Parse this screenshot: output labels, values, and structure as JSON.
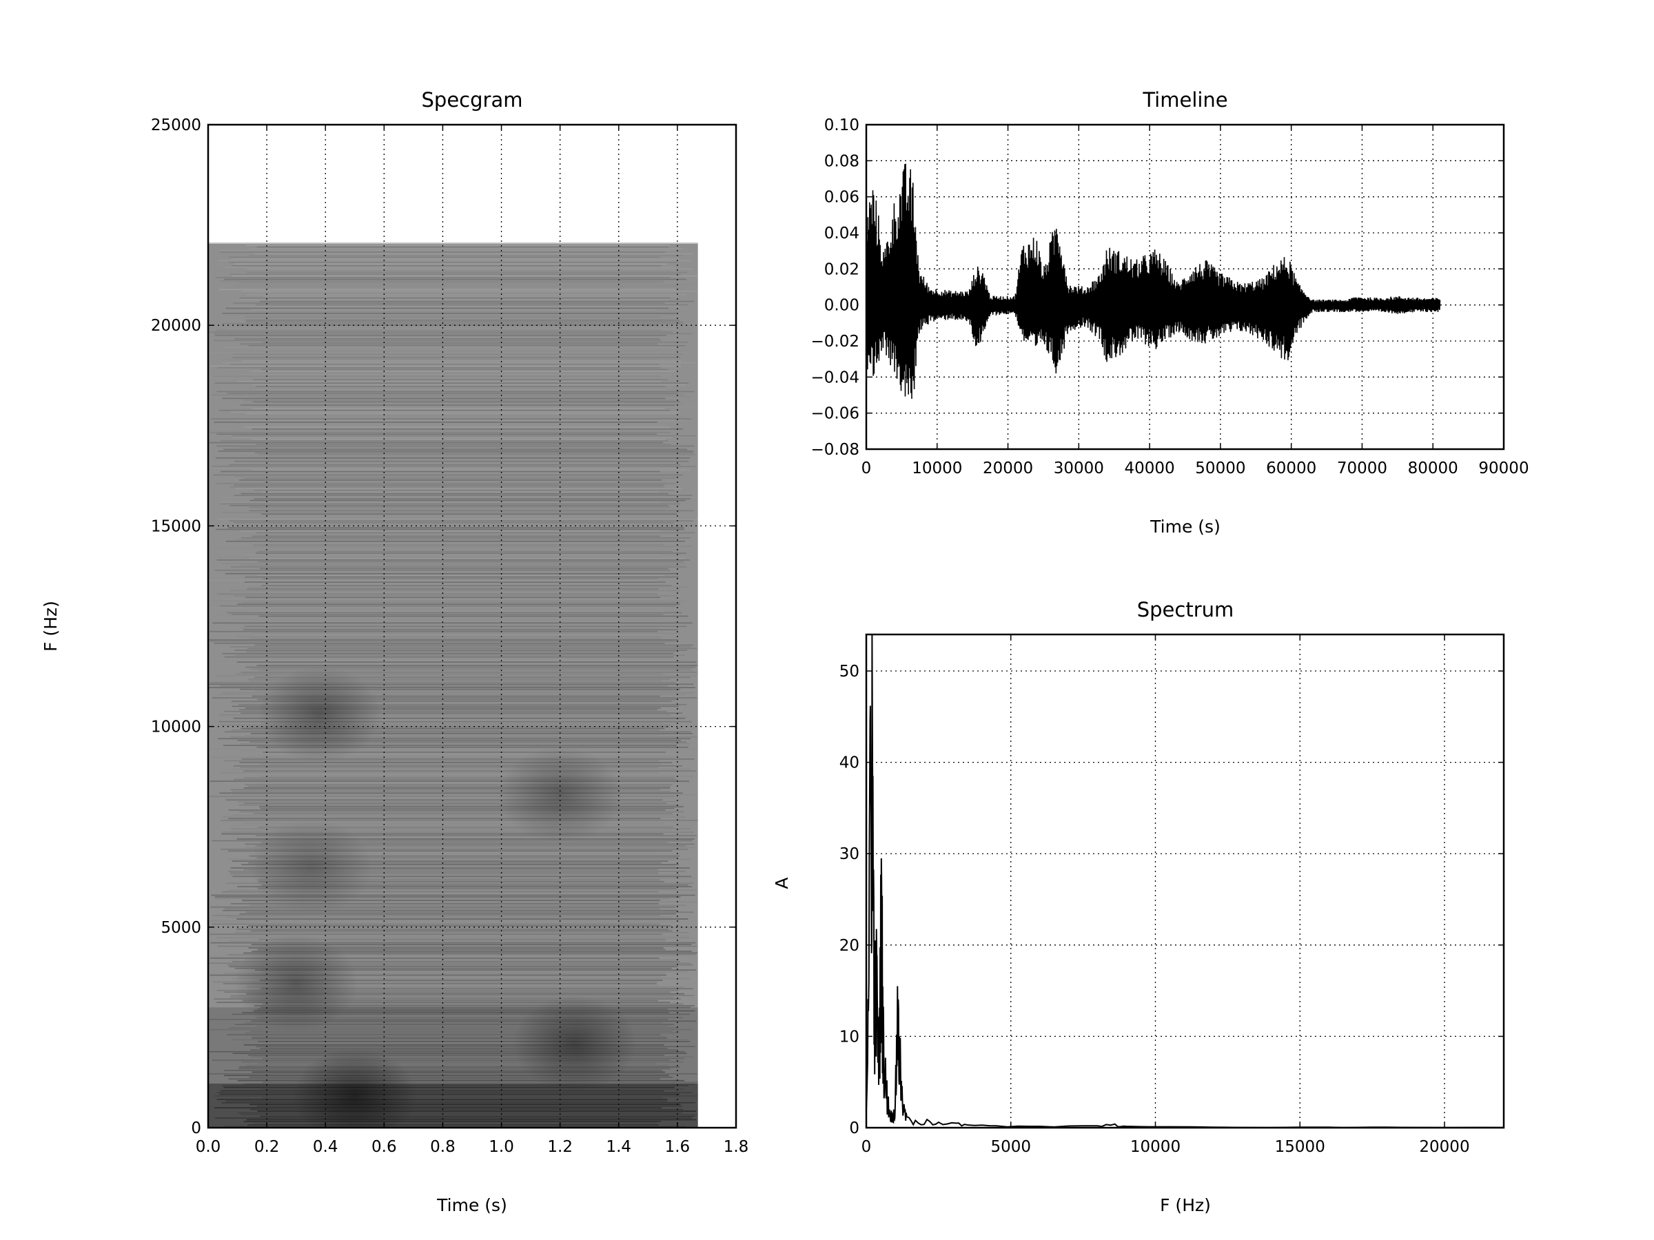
{
  "chart_data": [
    {
      "type": "heatmap",
      "title": "Specgram",
      "xlabel": "Time (s)",
      "ylabel": "F (Hz)",
      "xlim": [
        0.0,
        1.8
      ],
      "ylim": [
        0,
        25000
      ],
      "xticks": [
        "0.0",
        "0.2",
        "0.4",
        "0.6",
        "0.8",
        "1.0",
        "1.2",
        "1.4",
        "1.6",
        "1.8"
      ],
      "yticks": [
        "0",
        "5000",
        "10000",
        "15000",
        "20000",
        "25000"
      ],
      "data_extent": {
        "time_max": 1.67,
        "freq_max": 22050
      },
      "colormap": "grayscale",
      "grid": true,
      "dark_regions": [
        {
          "t": 0.38,
          "f": 10300,
          "intensity": 0.35
        },
        {
          "t": 1.2,
          "f": 8300,
          "intensity": 0.3
        },
        {
          "t": 1.25,
          "f": 2100,
          "intensity": 0.4
        },
        {
          "t": 0.3,
          "f": 3600,
          "intensity": 0.35
        },
        {
          "t": 0.5,
          "f": 800,
          "intensity": 0.5
        },
        {
          "t": 0.35,
          "f": 6500,
          "intensity": 0.25
        }
      ]
    },
    {
      "type": "line",
      "title": "Timeline",
      "xlabel": "Time (s)",
      "ylabel": "",
      "xlim": [
        0,
        90000
      ],
      "ylim": [
        -0.08,
        0.1
      ],
      "xticks": [
        "0",
        "10000",
        "20000",
        "30000",
        "40000",
        "50000",
        "60000",
        "70000",
        "80000",
        "90000"
      ],
      "yticks": [
        "−0.08",
        "−0.06",
        "−0.04",
        "−0.02",
        "0.00",
        "0.02",
        "0.04",
        "0.06",
        "0.08",
        "0.10"
      ],
      "grid": true,
      "samples": 81000,
      "envelope": [
        [
          0,
          0.055,
          -0.035
        ],
        [
          1000,
          0.07,
          -0.04
        ],
        [
          2500,
          0.03,
          -0.025
        ],
        [
          4000,
          0.06,
          -0.04
        ],
        [
          5500,
          0.08,
          -0.055
        ],
        [
          6500,
          0.075,
          -0.06
        ],
        [
          7500,
          0.02,
          -0.015
        ],
        [
          9000,
          0.01,
          -0.01
        ],
        [
          12000,
          0.008,
          -0.008
        ],
        [
          14500,
          0.008,
          -0.01
        ],
        [
          15500,
          0.022,
          -0.025
        ],
        [
          16500,
          0.02,
          -0.02
        ],
        [
          17500,
          0.005,
          -0.006
        ],
        [
          21000,
          0.005,
          -0.005
        ],
        [
          22000,
          0.035,
          -0.02
        ],
        [
          24000,
          0.04,
          -0.028
        ],
        [
          25000,
          0.02,
          -0.022
        ],
        [
          27000,
          0.053,
          -0.04
        ],
        [
          28500,
          0.012,
          -0.015
        ],
        [
          31000,
          0.01,
          -0.012
        ],
        [
          33000,
          0.018,
          -0.02
        ],
        [
          34000,
          0.033,
          -0.033
        ],
        [
          36000,
          0.03,
          -0.028
        ],
        [
          38000,
          0.025,
          -0.02
        ],
        [
          41000,
          0.032,
          -0.025
        ],
        [
          43000,
          0.02,
          -0.018
        ],
        [
          44000,
          0.012,
          -0.015
        ],
        [
          46000,
          0.022,
          -0.02
        ],
        [
          48000,
          0.025,
          -0.022
        ],
        [
          50000,
          0.018,
          -0.018
        ],
        [
          53000,
          0.012,
          -0.015
        ],
        [
          56000,
          0.015,
          -0.02
        ],
        [
          58000,
          0.025,
          -0.028
        ],
        [
          59500,
          0.028,
          -0.033
        ],
        [
          61000,
          0.012,
          -0.015
        ],
        [
          63000,
          0.003,
          -0.004
        ],
        [
          68000,
          0.003,
          -0.004
        ],
        [
          69000,
          0.005,
          -0.004
        ],
        [
          72000,
          0.004,
          -0.004
        ],
        [
          75000,
          0.005,
          -0.005
        ],
        [
          78000,
          0.004,
          -0.004
        ],
        [
          81000,
          0.004,
          -0.004
        ]
      ]
    },
    {
      "type": "line",
      "title": "Spectrum",
      "xlabel": "F (Hz)",
      "ylabel": "A",
      "xlim": [
        0,
        22050
      ],
      "ylim": [
        0,
        54
      ],
      "xticks": [
        "0",
        "5000",
        "10000",
        "15000",
        "20000"
      ],
      "yticks": [
        "0",
        "10",
        "20",
        "30",
        "40",
        "50"
      ],
      "grid": true,
      "peaks": [
        [
          0,
          2
        ],
        [
          120,
          37
        ],
        [
          200,
          54
        ],
        [
          280,
          18
        ],
        [
          360,
          19
        ],
        [
          440,
          8
        ],
        [
          520,
          29.5
        ],
        [
          600,
          10
        ],
        [
          700,
          5
        ],
        [
          800,
          2
        ],
        [
          900,
          1.5
        ],
        [
          1000,
          2.5
        ],
        [
          1080,
          15.5
        ],
        [
          1150,
          10
        ],
        [
          1250,
          3
        ],
        [
          1400,
          1.2
        ],
        [
          1700,
          0.8
        ],
        [
          2100,
          0.9
        ],
        [
          2500,
          0.6
        ],
        [
          3100,
          0.5
        ],
        [
          3500,
          0.3
        ],
        [
          4500,
          0.2
        ],
        [
          6000,
          0.15
        ],
        [
          8000,
          0.2
        ],
        [
          8600,
          0.4
        ],
        [
          9000,
          0.15
        ],
        [
          12000,
          0.05
        ],
        [
          16000,
          0.05
        ],
        [
          18000,
          0.05
        ],
        [
          22050,
          0.02
        ]
      ]
    }
  ]
}
